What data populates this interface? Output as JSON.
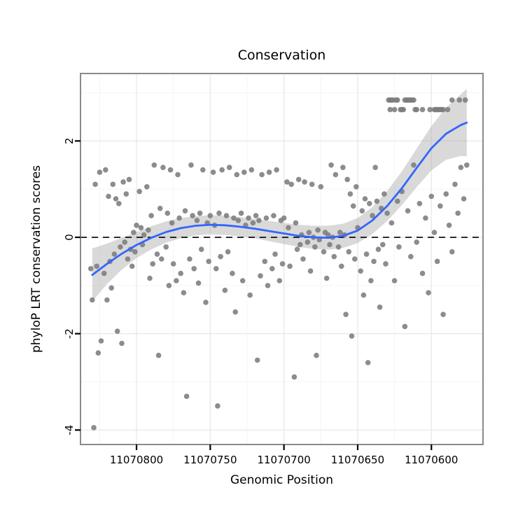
{
  "chart_data": {
    "type": "scatter",
    "title": "Conservation",
    "xlabel": "Genomic Position",
    "ylabel": "phyloP LRT conservation scores",
    "x_reversed": true,
    "xlim": [
      11070838,
      11070565
    ],
    "ylim": [
      -4.3,
      3.4
    ],
    "x_ticks": [
      11070800,
      11070750,
      11070700,
      11070650,
      11070600
    ],
    "x_minor_ticks": [
      11070825,
      11070775,
      11070725,
      11070675,
      11070625
    ],
    "y_ticks": [
      -4,
      -2,
      0,
      2
    ],
    "y_minor_ticks": [
      -3,
      -1,
      1,
      3
    ],
    "zero_line_y": 0,
    "legend": "none",
    "grid": "on",
    "colors": {
      "point": "#7c7c7c",
      "smooth_line": "#3366ff",
      "ribbon": "#9a9a9a",
      "grid_major": "#e8e8e8",
      "grid_minor": "#f5f5f5",
      "panel_border": "#8a8a8a",
      "zero_line": "#000000",
      "panel_bg": "#ffffff",
      "text": "#000000"
    },
    "smooth": {
      "x": [
        11070830,
        11070820,
        11070810,
        11070800,
        11070790,
        11070780,
        11070770,
        11070760,
        11070750,
        11070740,
        11070730,
        11070720,
        11070710,
        11070700,
        11070690,
        11070680,
        11070670,
        11070660,
        11070650,
        11070640,
        11070630,
        11070620,
        11070610,
        11070600,
        11070590,
        11070580,
        11070576
      ],
      "y": [
        -0.78,
        -0.55,
        -0.34,
        -0.16,
        -0.01,
        0.11,
        0.19,
        0.24,
        0.26,
        0.25,
        0.22,
        0.18,
        0.13,
        0.08,
        0.03,
        0.0,
        -0.01,
        0.03,
        0.14,
        0.35,
        0.65,
        1.02,
        1.44,
        1.85,
        2.15,
        2.33,
        2.38
      ],
      "lower": [
        -1.33,
        -0.97,
        -0.67,
        -0.43,
        -0.25,
        -0.11,
        -0.02,
        0.04,
        0.06,
        0.05,
        0.02,
        -0.02,
        -0.08,
        -0.14,
        -0.2,
        -0.24,
        -0.26,
        -0.22,
        -0.12,
        0.07,
        0.34,
        0.67,
        1.04,
        1.39,
        1.61,
        1.69,
        1.68
      ],
      "upper": [
        -0.23,
        -0.13,
        -0.01,
        0.11,
        0.23,
        0.33,
        0.4,
        0.44,
        0.46,
        0.45,
        0.42,
        0.38,
        0.34,
        0.3,
        0.26,
        0.24,
        0.24,
        0.28,
        0.4,
        0.63,
        0.96,
        1.37,
        1.84,
        2.31,
        2.69,
        2.97,
        3.08
      ]
    },
    "points": [
      [
        11070831,
        -0.65
      ],
      [
        11070830,
        -1.3
      ],
      [
        11070829,
        -3.95
      ],
      [
        11070828,
        1.1
      ],
      [
        11070827,
        -0.6
      ],
      [
        11070826,
        -2.4
      ],
      [
        11070825,
        1.35
      ],
      [
        11070824,
        -2.15
      ],
      [
        11070822,
        -0.75
      ],
      [
        11070821,
        1.4
      ],
      [
        11070820,
        -1.3
      ],
      [
        11070819,
        0.85
      ],
      [
        11070818,
        -0.5
      ],
      [
        11070817,
        -1.05
      ],
      [
        11070816,
        1.1
      ],
      [
        11070815,
        -0.35
      ],
      [
        11070814,
        0.8
      ],
      [
        11070813,
        -1.95
      ],
      [
        11070812,
        0.7
      ],
      [
        11070811,
        -0.2
      ],
      [
        11070810,
        -2.2
      ],
      [
        11070809,
        1.15
      ],
      [
        11070808,
        -0.1
      ],
      [
        11070807,
        0.9
      ],
      [
        11070806,
        -0.45
      ],
      [
        11070805,
        1.2
      ],
      [
        11070804,
        -0.25
      ],
      [
        11070803,
        -0.6
      ],
      [
        11070802,
        0.1
      ],
      [
        11070801,
        -0.3
      ],
      [
        11070800,
        0.25
      ],
      [
        11070798,
        0.95
      ],
      [
        11070797,
        0.2
      ],
      [
        11070796,
        -0.15
      ],
      [
        11070795,
        0.05
      ],
      [
        11070793,
        1.05
      ],
      [
        11070792,
        0.15
      ],
      [
        11070791,
        -0.85
      ],
      [
        11070790,
        0.45
      ],
      [
        11070789,
        -0.55
      ],
      [
        11070788,
        1.5
      ],
      [
        11070786,
        -0.35
      ],
      [
        11070785,
        -2.45
      ],
      [
        11070784,
        0.6
      ],
      [
        11070783,
        -0.45
      ],
      [
        11070782,
        1.45
      ],
      [
        11070780,
        -0.2
      ],
      [
        11070779,
        0.5
      ],
      [
        11070778,
        -1.0
      ],
      [
        11070777,
        1.4
      ],
      [
        11070776,
        0.3
      ],
      [
        11070775,
        -0.55
      ],
      [
        11070773,
        -0.9
      ],
      [
        11070772,
        1.3
      ],
      [
        11070771,
        0.4
      ],
      [
        11070770,
        -0.75
      ],
      [
        11070768,
        -1.15
      ],
      [
        11070767,
        0.55
      ],
      [
        11070766,
        -3.3
      ],
      [
        11070764,
        -0.45
      ],
      [
        11070763,
        1.5
      ],
      [
        11070762,
        0.45
      ],
      [
        11070761,
        -0.65
      ],
      [
        11070759,
        0.35
      ],
      [
        11070758,
        -0.95
      ],
      [
        11070757,
        0.5
      ],
      [
        11070756,
        -0.25
      ],
      [
        11070755,
        1.4
      ],
      [
        11070753,
        -1.35
      ],
      [
        11070752,
        0.3
      ],
      [
        11070751,
        -0.5
      ],
      [
        11070750,
        0.45
      ],
      [
        11070748,
        1.35
      ],
      [
        11070747,
        0.25
      ],
      [
        11070746,
        -0.65
      ],
      [
        11070745,
        -3.5
      ],
      [
        11070744,
        0.5
      ],
      [
        11070743,
        -0.4
      ],
      [
        11070742,
        1.4
      ],
      [
        11070740,
        -1.1
      ],
      [
        11070739,
        0.45
      ],
      [
        11070738,
        -0.3
      ],
      [
        11070737,
        1.45
      ],
      [
        11070735,
        -0.75
      ],
      [
        11070734,
        0.4
      ],
      [
        11070733,
        -1.55
      ],
      [
        11070732,
        1.3
      ],
      [
        11070731,
        0.35
      ],
      [
        11070729,
        0.5
      ],
      [
        11070728,
        -0.9
      ],
      [
        11070727,
        1.35
      ],
      [
        11070726,
        0.25
      ],
      [
        11070724,
        0.4
      ],
      [
        11070723,
        -1.2
      ],
      [
        11070722,
        1.4
      ],
      [
        11070721,
        0.3
      ],
      [
        11070719,
        0.45
      ],
      [
        11070718,
        -2.55
      ],
      [
        11070717,
        0.35
      ],
      [
        11070716,
        -0.8
      ],
      [
        11070715,
        1.3
      ],
      [
        11070713,
        -0.5
      ],
      [
        11070712,
        0.4
      ],
      [
        11070711,
        -1.0
      ],
      [
        11070710,
        1.35
      ],
      [
        11070708,
        -0.65
      ],
      [
        11070707,
        0.45
      ],
      [
        11070706,
        -0.35
      ],
      [
        11070705,
        1.4
      ],
      [
        11070703,
        -0.9
      ],
      [
        11070702,
        0.35
      ],
      [
        11070701,
        -0.55
      ],
      [
        11070700,
        0.4
      ],
      [
        11070698,
        1.15
      ],
      [
        11070697,
        0.2
      ],
      [
        11070696,
        -0.6
      ],
      [
        11070695,
        1.1
      ],
      [
        11070693,
        -2.9
      ],
      [
        11070692,
        0.3
      ],
      [
        11070691,
        -0.25
      ],
      [
        11070690,
        1.2
      ],
      [
        11070689,
        -0.15
      ],
      [
        11070688,
        0.05
      ],
      [
        11070687,
        -0.45
      ],
      [
        11070686,
        1.15
      ],
      [
        11070684,
        -0.1
      ],
      [
        11070683,
        0.1
      ],
      [
        11070682,
        -0.7
      ],
      [
        11070681,
        1.1
      ],
      [
        11070680,
        0.0
      ],
      [
        11070679,
        -0.2
      ],
      [
        11070678,
        -2.45
      ],
      [
        11070677,
        0.15
      ],
      [
        11070676,
        -0.05
      ],
      [
        11070675,
        1.05
      ],
      [
        11070673,
        -0.3
      ],
      [
        11070672,
        0.1
      ],
      [
        11070671,
        -0.85
      ],
      [
        11070670,
        0.05
      ],
      [
        11070669,
        -0.15
      ],
      [
        11070668,
        1.5
      ],
      [
        11070667,
        0.0
      ],
      [
        11070666,
        -0.4
      ],
      [
        11070665,
        1.3
      ],
      [
        11070663,
        -0.2
      ],
      [
        11070662,
        0.1
      ],
      [
        11070661,
        -0.6
      ],
      [
        11070660,
        1.45
      ],
      [
        11070659,
        0.05
      ],
      [
        11070658,
        -1.6
      ],
      [
        11070657,
        1.2
      ],
      [
        11070656,
        -0.3
      ],
      [
        11070655,
        0.9
      ],
      [
        11070654,
        -2.05
      ],
      [
        11070653,
        0.65
      ],
      [
        11070652,
        -0.45
      ],
      [
        11070651,
        1.05
      ],
      [
        11070650,
        0.2
      ],
      [
        11070648,
        -0.7
      ],
      [
        11070647,
        0.55
      ],
      [
        11070646,
        -1.2
      ],
      [
        11070645,
        0.8
      ],
      [
        11070644,
        -0.35
      ],
      [
        11070643,
        -2.6
      ],
      [
        11070642,
        0.7
      ],
      [
        11070641,
        -0.9
      ],
      [
        11070640,
        0.45
      ],
      [
        11070639,
        -0.5
      ],
      [
        11070638,
        1.45
      ],
      [
        11070637,
        0.75
      ],
      [
        11070636,
        -0.25
      ],
      [
        11070635,
        -1.45
      ],
      [
        11070634,
        0.6
      ],
      [
        11070633,
        -0.15
      ],
      [
        11070632,
        0.9
      ],
      [
        11070631,
        -0.55
      ],
      [
        11070630,
        0.5
      ],
      [
        11070629,
        2.85
      ],
      [
        11070628,
        2.85
      ],
      [
        11070627,
        2.85
      ],
      [
        11070626,
        2.85
      ],
      [
        11070624,
        2.85
      ],
      [
        11070623,
        2.85
      ],
      [
        11070618,
        2.85
      ],
      [
        11070617,
        2.85
      ],
      [
        11070616,
        2.85
      ],
      [
        11070615,
        2.85
      ],
      [
        11070614,
        2.85
      ],
      [
        11070613,
        2.85
      ],
      [
        11070612,
        2.85
      ],
      [
        11070586,
        2.85
      ],
      [
        11070581,
        2.85
      ],
      [
        11070577,
        2.85
      ],
      [
        11070628,
        2.65
      ],
      [
        11070625,
        2.65
      ],
      [
        11070621,
        2.65
      ],
      [
        11070620,
        2.65
      ],
      [
        11070619,
        2.65
      ],
      [
        11070611,
        2.65
      ],
      [
        11070610,
        2.65
      ],
      [
        11070606,
        2.65
      ],
      [
        11070601,
        2.65
      ],
      [
        11070598,
        2.65
      ],
      [
        11070597,
        2.65
      ],
      [
        11070596,
        2.65
      ],
      [
        11070595,
        2.65
      ],
      [
        11070594,
        2.65
      ],
      [
        11070593,
        2.65
      ],
      [
        11070592,
        2.65
      ],
      [
        11070589,
        2.65
      ],
      [
        11070627,
        0.3
      ],
      [
        11070625,
        -0.9
      ],
      [
        11070623,
        0.75
      ],
      [
        11070622,
        -0.2
      ],
      [
        11070620,
        0.95
      ],
      [
        11070618,
        -1.85
      ],
      [
        11070616,
        0.55
      ],
      [
        11070614,
        -0.4
      ],
      [
        11070612,
        1.5
      ],
      [
        11070610,
        -0.1
      ],
      [
        11070608,
        0.7
      ],
      [
        11070606,
        -0.75
      ],
      [
        11070604,
        0.4
      ],
      [
        11070602,
        -1.15
      ],
      [
        11070600,
        0.85
      ],
      [
        11070598,
        0.1
      ],
      [
        11070596,
        -0.5
      ],
      [
        11070594,
        0.65
      ],
      [
        11070592,
        -1.6
      ],
      [
        11070590,
        0.9
      ],
      [
        11070588,
        0.25
      ],
      [
        11070586,
        -0.3
      ],
      [
        11070584,
        1.1
      ],
      [
        11070582,
        0.5
      ],
      [
        11070580,
        1.45
      ],
      [
        11070578,
        0.8
      ],
      [
        11070576,
        1.5
      ]
    ]
  }
}
